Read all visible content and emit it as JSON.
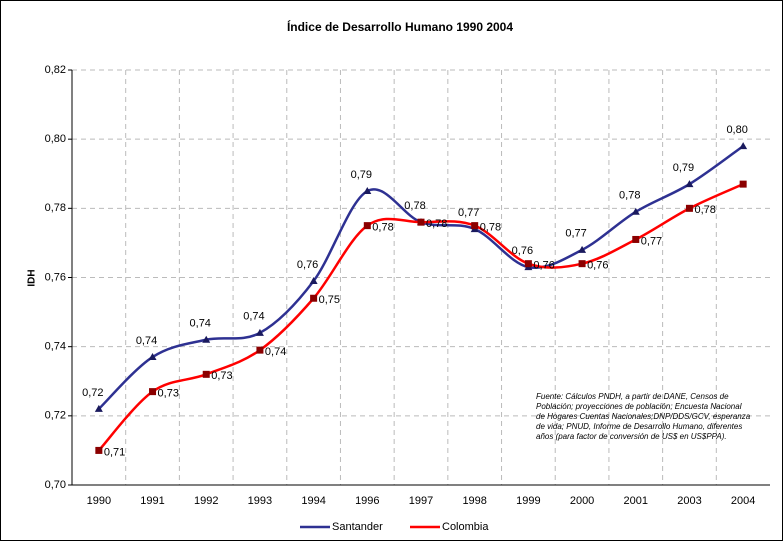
{
  "chart_data": {
    "type": "line",
    "title": "Índice de Desarrollo Humano 1990 2004",
    "y_label": "IDH",
    "categories": [
      "1990",
      "1991",
      "1992",
      "1993",
      "1994",
      "1996",
      "1997",
      "1998",
      "1999",
      "2000",
      "2001",
      "2003",
      "2004"
    ],
    "series": [
      {
        "name": "Santander",
        "color": "#2e3192",
        "values": [
          0.722,
          0.737,
          0.742,
          0.744,
          0.759,
          0.785,
          0.776,
          0.774,
          0.763,
          0.768,
          0.779,
          0.787,
          0.798
        ],
        "value_labels": [
          "0,72",
          "0,74",
          "0,74",
          "0,74",
          "0,76",
          "0,79",
          "0,78",
          "0,77",
          "0,76",
          "0,77",
          "0,78",
          "0,79",
          "0,80"
        ]
      },
      {
        "name": "Colombia",
        "color": "#ff0000",
        "values": [
          0.71,
          0.727,
          0.732,
          0.739,
          0.754,
          0.775,
          0.776,
          0.775,
          0.764,
          0.764,
          0.771,
          0.78,
          0.787
        ],
        "value_labels": [
          "0,71",
          "0,73",
          "0,73",
          "0,74",
          "0,75",
          "0,78",
          "0,78",
          "0,78",
          "0,76",
          "0,76",
          "0,77",
          "0,78",
          null
        ]
      }
    ],
    "ylim": [
      0.7,
      0.82
    ],
    "yticks": [
      {
        "value": 0.7,
        "label": "0,70"
      },
      {
        "value": 0.72,
        "label": "0,72"
      },
      {
        "value": 0.74,
        "label": "0,74"
      },
      {
        "value": 0.76,
        "label": "0,76"
      },
      {
        "value": 0.78,
        "label": "0,78"
      },
      {
        "value": 0.8,
        "label": "0,80"
      },
      {
        "value": 0.82,
        "label": "0,82"
      }
    ],
    "grid": true,
    "legend": "bottom",
    "annotation": [
      "Fuente: Cálculos PNDH, a partir de DANE, Censos de",
      "Población; proyecciones de población; Encuesta Nacional",
      "de Hogares Cuentas Nacionales;DNP/DDS/GCV, esperanza",
      "de vida; PNUD, Informe de Desarrollo Humano, diferentes",
      "años (para factor de conversión de US$ en US$PPA)."
    ]
  }
}
